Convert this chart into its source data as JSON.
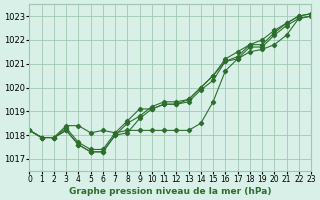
{
  "title": "Graphe pression niveau de la mer (hPa)",
  "background_color": "#d8f0e8",
  "grid_color": "#a0c8b0",
  "line_color": "#2d6e2d",
  "xlim": [
    0,
    23
  ],
  "ylim": [
    1016.5,
    1023.5
  ],
  "yticks": [
    1017,
    1018,
    1019,
    1020,
    1021,
    1022,
    1023
  ],
  "xtick_labels": [
    "0",
    "1",
    "2",
    "3",
    "4",
    "5",
    "6",
    "7",
    "8",
    "9",
    "10",
    "11",
    "12",
    "13",
    "14",
    "15",
    "16",
    "17",
    "18",
    "19",
    "20",
    "21",
    "22",
    "23"
  ],
  "series": [
    [
      1018.2,
      1017.9,
      1017.9,
      1018.2,
      1017.6,
      1017.3,
      1017.3,
      1018.0,
      1018.1,
      1018.7,
      1019.1,
      1019.3,
      1019.3,
      1019.4,
      1019.9,
      1020.3,
      1021.1,
      1021.2,
      1021.7,
      1021.7,
      1022.2,
      1022.6,
      1022.9,
      1023.0
    ],
    [
      1018.2,
      1017.9,
      1017.9,
      1018.2,
      1017.6,
      1017.3,
      1017.3,
      1018.0,
      1018.5,
      1018.8,
      1019.2,
      1019.4,
      1019.4,
      1019.5,
      1020.0,
      1020.5,
      1021.1,
      1021.3,
      1021.8,
      1021.8,
      1022.3,
      1022.7,
      1023.0,
      1023.1
    ],
    [
      1018.2,
      1017.9,
      1017.9,
      1018.3,
      1017.7,
      1017.4,
      1017.4,
      1018.1,
      1018.6,
      1019.1,
      1019.1,
      1019.3,
      1019.3,
      1019.5,
      1020.0,
      1020.5,
      1021.2,
      1021.5,
      1021.8,
      1022.0,
      1022.4,
      1022.7,
      1023.0,
      1023.1
    ],
    [
      1018.2,
      1017.9,
      1017.9,
      1018.4,
      1018.4,
      1018.1,
      1018.2,
      1018.1,
      1018.2,
      1018.2,
      1018.2,
      1018.2,
      1018.2,
      1018.2,
      1018.5,
      1019.4,
      1020.7,
      1021.2,
      1021.5,
      1021.6,
      1021.8,
      1022.2,
      1022.9,
      1023.0
    ]
  ]
}
